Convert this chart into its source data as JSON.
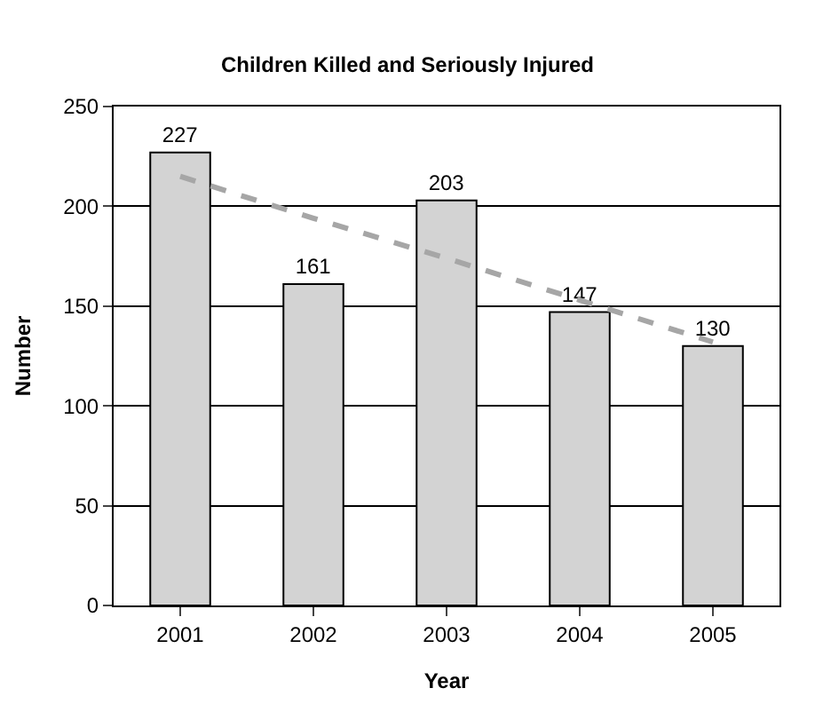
{
  "chart_data": {
    "type": "bar",
    "title": "Children Killed and Seriously Injured",
    "xlabel": "Year",
    "ylabel": "Number",
    "categories": [
      "2001",
      "2002",
      "2003",
      "2004",
      "2005"
    ],
    "series": [
      {
        "color": "#d3d3d3",
        "values": [
          227,
          161,
          203,
          147,
          130
        ],
        "value_labels": [
          "227",
          "161",
          "203",
          "147",
          "130"
        ]
      },
      {
        "type": "line",
        "color": "#a6a6a6",
        "line_style": "dashed",
        "values": [
          215,
          194,
          174,
          153,
          132
        ]
      }
    ],
    "ylim": [
      0,
      250
    ],
    "yticks": [
      0,
      50,
      100,
      150,
      200,
      250
    ],
    "grid": "y"
  }
}
